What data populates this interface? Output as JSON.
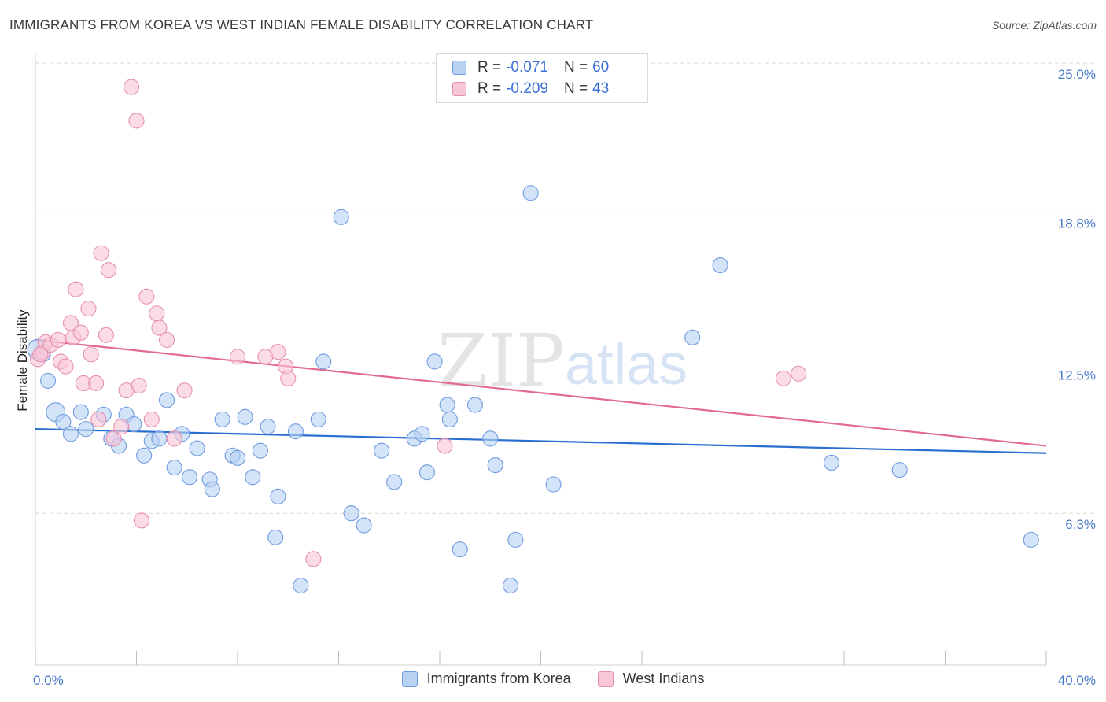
{
  "title": "IMMIGRANTS FROM KOREA VS WEST INDIAN FEMALE DISABILITY CORRELATION CHART",
  "source": "Source: ZipAtlas.com",
  "watermark": {
    "zip": "ZIP",
    "atlas": "atlas"
  },
  "legend": {
    "r_label": "R =",
    "n_label": "N =",
    "entries": [
      {
        "r": "-0.071",
        "n": "60",
        "fill": "#b8d2f3",
        "stroke": "#6f9be0"
      },
      {
        "r": "-0.209",
        "n": "43",
        "fill": "#f8c7d6",
        "stroke": "#e690ad"
      }
    ]
  },
  "chart_data": {
    "type": "scatter",
    "xlabel": "",
    "ylabel": "Female Disability",
    "xlim": [
      0,
      40
    ],
    "ylim": [
      0,
      25
    ],
    "x_tick_labels": [
      {
        "value": 0,
        "label": "0.0%"
      },
      {
        "value": 40,
        "label": "40.0%"
      }
    ],
    "y_tick_labels": [
      {
        "value": 6.3,
        "label": "6.3%"
      },
      {
        "value": 12.5,
        "label": "12.5%"
      },
      {
        "value": 18.8,
        "label": "18.8%"
      },
      {
        "value": 25.0,
        "label": "25.0%"
      }
    ],
    "legend_position": "top-center",
    "series": [
      {
        "name": "Immigrants from Korea",
        "color": "#6f9be0",
        "fill": "#b8d2f3",
        "trend": {
          "x0": 0,
          "y0": 9.8,
          "x1": 40,
          "y1": 8.8,
          "color": "#2a6fcf"
        },
        "points": [
          [
            0.1,
            13.1
          ],
          [
            0.5,
            11.8
          ],
          [
            0.8,
            10.5
          ],
          [
            1.1,
            10.1
          ],
          [
            1.4,
            9.6
          ],
          [
            1.8,
            10.5
          ],
          [
            2.0,
            9.8
          ],
          [
            2.7,
            10.4
          ],
          [
            3.0,
            9.4
          ],
          [
            3.3,
            9.1
          ],
          [
            3.6,
            10.4
          ],
          [
            3.9,
            10.0
          ],
          [
            4.3,
            8.7
          ],
          [
            4.6,
            9.3
          ],
          [
            4.9,
            9.4
          ],
          [
            5.2,
            11.0
          ],
          [
            5.5,
            8.2
          ],
          [
            5.8,
            9.6
          ],
          [
            6.1,
            7.8
          ],
          [
            6.4,
            9.0
          ],
          [
            6.9,
            7.7
          ],
          [
            7.0,
            7.3
          ],
          [
            7.4,
            10.2
          ],
          [
            7.8,
            8.7
          ],
          [
            8.0,
            8.6
          ],
          [
            8.3,
            10.3
          ],
          [
            8.6,
            7.8
          ],
          [
            8.9,
            8.9
          ],
          [
            9.2,
            9.9
          ],
          [
            9.5,
            5.3
          ],
          [
            9.6,
            7.0
          ],
          [
            10.3,
            9.7
          ],
          [
            10.5,
            3.3
          ],
          [
            11.2,
            10.2
          ],
          [
            11.4,
            12.6
          ],
          [
            12.1,
            18.6
          ],
          [
            12.5,
            6.3
          ],
          [
            13.0,
            5.8
          ],
          [
            13.7,
            8.9
          ],
          [
            14.2,
            7.6
          ],
          [
            15.0,
            9.4
          ],
          [
            15.3,
            9.6
          ],
          [
            15.5,
            8.0
          ],
          [
            15.8,
            12.6
          ],
          [
            16.3,
            10.8
          ],
          [
            16.4,
            10.2
          ],
          [
            16.8,
            4.8
          ],
          [
            17.4,
            10.8
          ],
          [
            18.0,
            9.4
          ],
          [
            18.2,
            8.3
          ],
          [
            18.8,
            3.3
          ],
          [
            19.0,
            5.2
          ],
          [
            19.6,
            19.6
          ],
          [
            20.5,
            7.5
          ],
          [
            26.0,
            13.6
          ],
          [
            27.1,
            16.6
          ],
          [
            31.5,
            8.4
          ],
          [
            34.2,
            8.1
          ],
          [
            39.4,
            5.2
          ],
          [
            0.3,
            12.9
          ]
        ]
      },
      {
        "name": "West Indians",
        "color": "#e690ad",
        "fill": "#f8c7d6",
        "trend": {
          "x0": 0,
          "y0": 13.5,
          "x1": 40,
          "y1": 9.1,
          "color": "#e36a96"
        },
        "points": [
          [
            0.1,
            12.7
          ],
          [
            0.3,
            13.0
          ],
          [
            0.4,
            13.4
          ],
          [
            0.6,
            13.3
          ],
          [
            0.9,
            13.5
          ],
          [
            1.0,
            12.6
          ],
          [
            1.2,
            12.4
          ],
          [
            1.4,
            14.2
          ],
          [
            1.5,
            13.6
          ],
          [
            1.6,
            15.6
          ],
          [
            1.8,
            13.8
          ],
          [
            1.9,
            11.7
          ],
          [
            2.1,
            14.8
          ],
          [
            2.2,
            12.9
          ],
          [
            2.4,
            11.7
          ],
          [
            2.5,
            10.2
          ],
          [
            2.6,
            17.1
          ],
          [
            2.8,
            13.7
          ],
          [
            2.9,
            16.4
          ],
          [
            3.1,
            9.4
          ],
          [
            3.4,
            9.9
          ],
          [
            3.6,
            11.4
          ],
          [
            3.8,
            24.0
          ],
          [
            4.0,
            22.6
          ],
          [
            4.1,
            11.6
          ],
          [
            4.2,
            6.0
          ],
          [
            4.4,
            15.3
          ],
          [
            4.6,
            10.2
          ],
          [
            4.8,
            14.6
          ],
          [
            4.9,
            14.0
          ],
          [
            5.2,
            13.5
          ],
          [
            5.5,
            9.4
          ],
          [
            5.9,
            11.4
          ],
          [
            8.0,
            12.8
          ],
          [
            9.1,
            12.8
          ],
          [
            9.6,
            13.0
          ],
          [
            9.9,
            12.4
          ],
          [
            10.0,
            11.9
          ],
          [
            11.0,
            4.4
          ],
          [
            16.2,
            9.1
          ],
          [
            29.6,
            11.9
          ],
          [
            30.2,
            12.1
          ],
          [
            0.2,
            12.9
          ]
        ]
      }
    ]
  }
}
